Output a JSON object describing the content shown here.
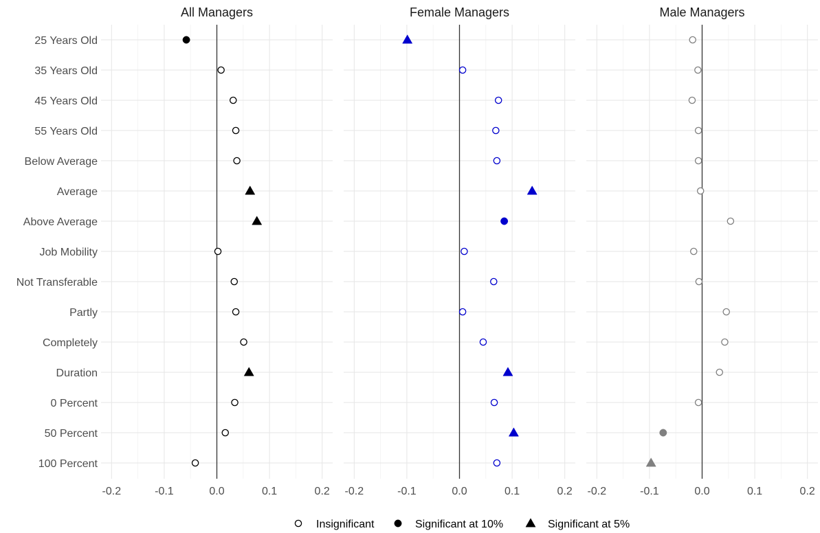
{
  "chart_data": {
    "type": "scatter",
    "layout": "faceted",
    "categories": [
      "25 Years Old",
      "35 Years Old",
      "45 Years Old",
      "55 Years Old",
      "Below Average",
      "Average",
      "Above Average",
      "Job Mobility",
      "Not Transferable",
      "Partly",
      "Completely",
      "Duration",
      "0 Percent",
      "50 Percent",
      "100 Percent"
    ],
    "xlim": [
      -0.22,
      0.22
    ],
    "xticks": [
      -0.2,
      -0.1,
      0.0,
      0.1,
      0.2
    ],
    "xtick_labels": [
      "-0.2",
      "-0.1",
      "0.0",
      "0.1",
      "0.2"
    ],
    "reference_line": 0,
    "grid": true,
    "legend_position": "bottom",
    "legend": [
      {
        "key": "insig",
        "label": "Insignificant",
        "shape": "circle-open"
      },
      {
        "key": "sig10",
        "label": "Significant at 10%",
        "shape": "circle-filled"
      },
      {
        "key": "sig5",
        "label": "Significant at 5%",
        "shape": "triangle-filled"
      }
    ],
    "panels": [
      {
        "title": "All Managers",
        "color": "#000000",
        "values": [
          -0.058,
          0.008,
          0.031,
          0.036,
          0.038,
          0.063,
          0.076,
          0.002,
          0.033,
          0.036,
          0.051,
          0.061,
          0.034,
          0.016,
          -0.041
        ],
        "significance": [
          "sig10",
          "insig",
          "insig",
          "insig",
          "insig",
          "sig5",
          "sig5",
          "insig",
          "insig",
          "insig",
          "insig",
          "sig5",
          "insig",
          "insig",
          "insig"
        ]
      },
      {
        "title": "Female Managers",
        "color": "#0000cd",
        "values": [
          -0.099,
          0.006,
          0.074,
          0.069,
          0.071,
          0.138,
          0.085,
          0.009,
          0.065,
          0.006,
          0.045,
          0.092,
          0.066,
          0.103,
          0.071
        ],
        "significance": [
          "sig5",
          "insig",
          "insig",
          "insig",
          "insig",
          "sig5",
          "sig10",
          "insig",
          "insig",
          "insig",
          "insig",
          "sig5",
          "insig",
          "sig5",
          "insig"
        ]
      },
      {
        "title": "Male Managers",
        "color": "#808080",
        "values": [
          -0.018,
          -0.008,
          -0.019,
          -0.007,
          -0.007,
          -0.003,
          0.054,
          -0.016,
          -0.006,
          0.046,
          0.043,
          0.033,
          -0.007,
          -0.074,
          -0.097
        ],
        "significance": [
          "insig",
          "insig",
          "insig",
          "insig",
          "insig",
          "insig",
          "insig",
          "insig",
          "insig",
          "insig",
          "insig",
          "insig",
          "insig",
          "sig10",
          "sig5"
        ]
      }
    ]
  }
}
